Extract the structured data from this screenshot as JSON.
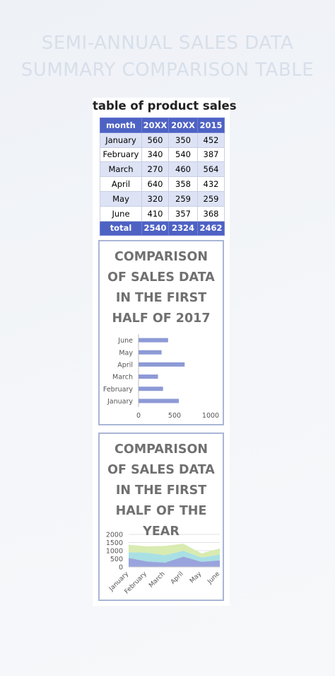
{
  "page": {
    "title_lines": [
      "SEMI-ANNUAL SALES DATA",
      "SUMMARY COMPARISON TABLE"
    ]
  },
  "table": {
    "title": "table of product sales",
    "headers": [
      "month",
      "20XX",
      "20XX",
      "2015"
    ],
    "rows": [
      [
        "January",
        "560",
        "350",
        "452"
      ],
      [
        "February",
        "340",
        "540",
        "387"
      ],
      [
        "March",
        "270",
        "460",
        "564"
      ],
      [
        "April",
        "640",
        "358",
        "432"
      ],
      [
        "May",
        "320",
        "259",
        "259"
      ],
      [
        "June",
        "410",
        "357",
        "368"
      ]
    ],
    "total": [
      "total",
      "2540",
      "2324",
      "2462"
    ]
  },
  "colors": {
    "header_bg": "#4e62c4",
    "row_alt": "#dde3f5",
    "bar": "#8d9ad6",
    "area_bottom": "#9aa4dc",
    "area_middle": "#a9e0e4",
    "area_top": "#d8ebb0",
    "title_faded": "#d7dfea"
  },
  "chart_data": [
    {
      "type": "bar",
      "orientation": "horizontal",
      "title_lines": [
        "COMPARISON",
        "OF SALES DATA",
        "IN THE FIRST",
        "HALF OF 2017"
      ],
      "categories": [
        "January",
        "February",
        "March",
        "April",
        "May",
        "June"
      ],
      "values": [
        560,
        340,
        270,
        640,
        320,
        410
      ],
      "xlim": [
        0,
        1000
      ],
      "xticks": [
        "0",
        "500",
        "1000"
      ],
      "grid": false
    },
    {
      "type": "area",
      "stacked": true,
      "title_lines": [
        "COMPARISON",
        "OF SALES DATA",
        "IN THE FIRST",
        "HALF OF THE",
        "YEAR"
      ],
      "categories": [
        "January",
        "February",
        "March",
        "April",
        "May",
        "June"
      ],
      "series": [
        {
          "values": [
            560,
            340,
            270,
            640,
            320,
            410
          ]
        },
        {
          "values": [
            350,
            540,
            460,
            358,
            259,
            357
          ]
        },
        {
          "values": [
            452,
            387,
            564,
            432,
            259,
            368
          ]
        }
      ],
      "ylim": [
        0,
        2000
      ],
      "yticks": [
        "0",
        "500",
        "1000",
        "1500",
        "2000"
      ],
      "grid": true
    }
  ]
}
